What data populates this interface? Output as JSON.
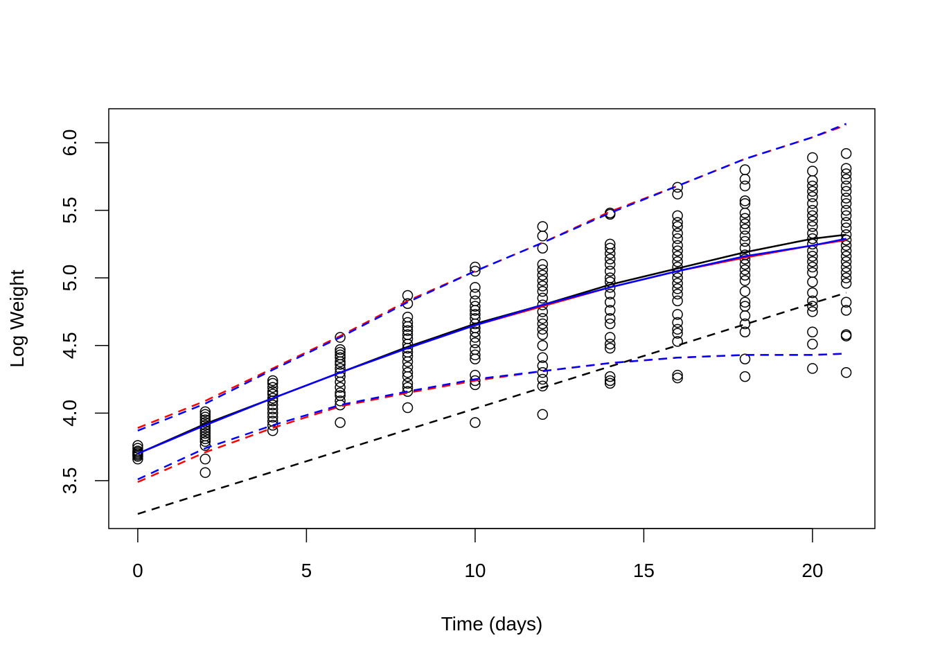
{
  "chart_data": {
    "type": "scatter",
    "title": "",
    "xlabel": "Time (days)",
    "ylabel": "Log Weight",
    "xlim": [
      -0.86,
      21.85
    ],
    "ylim": [
      3.146,
      6.251
    ],
    "xticks": [
      "0",
      "5",
      "10",
      "15",
      "20"
    ],
    "yticks": [
      "3.5",
      "4.0",
      "4.5",
      "5.0",
      "5.5",
      "6.0"
    ],
    "grid": false,
    "points": [
      {
        "x": 0,
        "y": [
          3.66,
          3.68,
          3.69,
          3.7,
          3.71,
          3.72,
          3.74,
          3.76
        ]
      },
      {
        "x": 2,
        "y": [
          3.56,
          3.66,
          3.76,
          3.79,
          3.81,
          3.83,
          3.85,
          3.87,
          3.89,
          3.91,
          3.93,
          3.95,
          3.97,
          3.99,
          4.01
        ]
      },
      {
        "x": 4,
        "y": [
          3.87,
          3.91,
          3.94,
          3.97,
          4.0,
          4.03,
          4.06,
          4.09,
          4.11,
          4.14,
          4.16,
          4.19,
          4.22,
          4.24
        ]
      },
      {
        "x": 6,
        "y": [
          3.93,
          4.06,
          4.09,
          4.13,
          4.15,
          4.19,
          4.23,
          4.27,
          4.3,
          4.33,
          4.36,
          4.38,
          4.41,
          4.43,
          4.45,
          4.47,
          4.56
        ]
      },
      {
        "x": 8,
        "y": [
          4.04,
          4.16,
          4.19,
          4.22,
          4.27,
          4.3,
          4.34,
          4.38,
          4.42,
          4.45,
          4.48,
          4.51,
          4.55,
          4.58,
          4.61,
          4.64,
          4.67,
          4.71,
          4.81,
          4.87
        ]
      },
      {
        "x": 10,
        "y": [
          3.93,
          4.21,
          4.24,
          4.28,
          4.4,
          4.43,
          4.47,
          4.52,
          4.56,
          4.6,
          4.63,
          4.66,
          4.7,
          4.73,
          4.76,
          4.79,
          4.83,
          4.88,
          4.93,
          5.05,
          5.08
        ]
      },
      {
        "x": 12,
        "y": [
          3.99,
          4.2,
          4.25,
          4.3,
          4.35,
          4.41,
          4.5,
          4.58,
          4.62,
          4.66,
          4.7,
          4.75,
          4.8,
          4.85,
          4.9,
          4.94,
          4.98,
          5.02,
          5.06,
          5.1,
          5.22,
          5.31,
          5.38
        ]
      },
      {
        "x": 14,
        "y": [
          4.22,
          4.24,
          4.27,
          4.48,
          4.51,
          4.56,
          4.66,
          4.7,
          4.76,
          4.82,
          4.88,
          4.93,
          4.97,
          5.0,
          5.05,
          5.1,
          5.14,
          5.18,
          5.22,
          5.25,
          5.47,
          5.48
        ]
      },
      {
        "x": 16,
        "y": [
          4.26,
          4.28,
          4.53,
          4.59,
          4.62,
          4.67,
          4.73,
          4.83,
          4.88,
          4.92,
          4.96,
          5.0,
          5.04,
          5.08,
          5.12,
          5.16,
          5.2,
          5.24,
          5.29,
          5.33,
          5.38,
          5.41,
          5.46,
          5.62,
          5.67
        ]
      },
      {
        "x": 18,
        "y": [
          4.27,
          4.4,
          4.6,
          4.66,
          4.72,
          4.79,
          4.82,
          4.9,
          4.98,
          5.02,
          5.06,
          5.1,
          5.14,
          5.17,
          5.22,
          5.27,
          5.31,
          5.36,
          5.4,
          5.44,
          5.48,
          5.55,
          5.57,
          5.68,
          5.73,
          5.8
        ]
      },
      {
        "x": 20,
        "y": [
          4.33,
          4.51,
          4.6,
          4.75,
          4.79,
          4.83,
          4.89,
          4.97,
          5.04,
          5.08,
          5.12,
          5.16,
          5.2,
          5.25,
          5.29,
          5.33,
          5.38,
          5.42,
          5.46,
          5.5,
          5.55,
          5.6,
          5.64,
          5.68,
          5.72,
          5.79,
          5.89
        ]
      },
      {
        "x": 21,
        "y": [
          4.3,
          4.57,
          4.58,
          4.76,
          4.82,
          4.96,
          5.0,
          5.04,
          5.08,
          5.12,
          5.16,
          5.2,
          5.24,
          5.28,
          5.32,
          5.37,
          5.41,
          5.46,
          5.5,
          5.55,
          5.59,
          5.64,
          5.68,
          5.73,
          5.77,
          5.81,
          5.92
        ]
      }
    ],
    "series": [
      {
        "color": "#000000",
        "dash": false,
        "x": [
          0,
          2,
          4,
          6,
          8,
          10,
          12,
          14,
          16,
          18,
          20,
          21
        ],
        "y": [
          3.7,
          3.92,
          4.11,
          4.3,
          4.49,
          4.66,
          4.8,
          4.95,
          5.07,
          5.19,
          5.29,
          5.32
        ]
      },
      {
        "color": "#ff0000",
        "dash": false,
        "x": [
          0,
          2,
          4,
          6,
          8,
          10,
          12,
          14,
          16,
          18,
          20,
          21
        ],
        "y": [
          3.7,
          3.91,
          4.11,
          4.3,
          4.48,
          4.65,
          4.79,
          4.93,
          5.05,
          5.15,
          5.24,
          5.28
        ]
      },
      {
        "color": "#0000ff",
        "dash": false,
        "x": [
          0,
          2,
          4,
          6,
          8,
          10,
          12,
          14,
          16,
          18,
          20,
          21
        ],
        "y": [
          3.7,
          3.91,
          4.11,
          4.3,
          4.48,
          4.65,
          4.8,
          4.93,
          5.05,
          5.16,
          5.24,
          5.29
        ]
      },
      {
        "color": "#000000",
        "dash": true,
        "x": [
          0,
          21
        ],
        "y": [
          3.254,
          4.89
        ]
      },
      {
        "color": "#ff0000",
        "dash": true,
        "x": [
          0,
          2,
          4,
          6,
          8,
          10,
          12,
          14,
          16,
          18,
          20,
          21
        ],
        "y": [
          3.89,
          4.09,
          4.33,
          4.57,
          4.83,
          5.05,
          5.26,
          5.49,
          5.68,
          5.88,
          6.04,
          6.13
        ]
      },
      {
        "color": "#0000ff",
        "dash": true,
        "x": [
          0,
          2,
          4,
          6,
          8,
          10,
          12,
          14,
          16,
          18,
          20,
          21
        ],
        "y": [
          3.87,
          4.07,
          4.32,
          4.56,
          4.82,
          5.05,
          5.26,
          5.48,
          5.68,
          5.88,
          6.04,
          6.14
        ]
      },
      {
        "color": "#ff0000",
        "dash": true,
        "x": [
          0,
          2,
          4,
          6,
          8,
          10,
          12,
          14,
          16,
          18,
          20,
          21
        ],
        "y": [
          3.49,
          3.71,
          3.89,
          4.05,
          4.15,
          4.24,
          4.31,
          4.37,
          4.41,
          4.43,
          4.43,
          4.44
        ]
      },
      {
        "color": "#0000ff",
        "dash": true,
        "x": [
          0,
          2,
          4,
          6,
          8,
          10,
          12,
          14,
          16,
          18,
          20,
          21
        ],
        "y": [
          3.51,
          3.74,
          3.91,
          4.06,
          4.16,
          4.25,
          4.31,
          4.37,
          4.41,
          4.43,
          4.43,
          4.44
        ]
      }
    ]
  }
}
